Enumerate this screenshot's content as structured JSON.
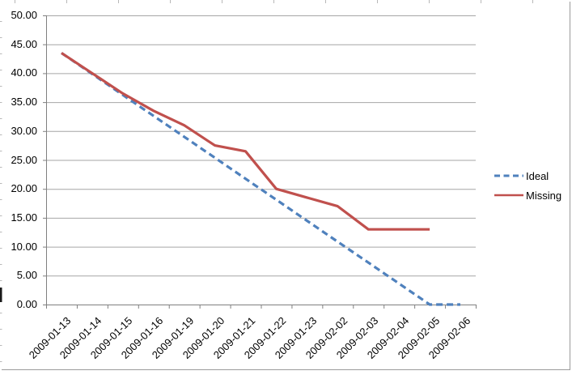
{
  "chart_data": {
    "type": "line",
    "title": "",
    "xlabel": "",
    "ylabel": "",
    "categories": [
      "2009-01-13",
      "2009-01-14",
      "2009-01-15",
      "2009-01-16",
      "2009-01-19",
      "2009-01-20",
      "2009-01-21",
      "2009-01-22",
      "2009-01-23",
      "2009-02-02",
      "2009-02-03",
      "2009-02-04",
      "2009-02-05",
      "2009-02-06"
    ],
    "series": [
      {
        "name": "Ideal",
        "style": "dashed",
        "color": "#4F81BD",
        "values": [
          43.5,
          39.875,
          36.25,
          32.625,
          29,
          25.375,
          21.75,
          18.125,
          14.5,
          10.875,
          7.25,
          3.625,
          0,
          0
        ]
      },
      {
        "name": "Missing",
        "style": "solid",
        "color": "#C0504D",
        "values": [
          43.5,
          40,
          36.5,
          33.5,
          31,
          27.5,
          26.5,
          20,
          18.5,
          17,
          13,
          13,
          13,
          null
        ]
      }
    ],
    "ylim": [
      0,
      50
    ],
    "y_tick_step": 5,
    "y_tick_labels": [
      "50.00",
      "45.00",
      "40.00",
      "35.00",
      "30.00",
      "25.00",
      "20.00",
      "15.00",
      "10.00",
      "5.00",
      "0.00"
    ],
    "grid": "horizontal",
    "legend_position": "right"
  }
}
